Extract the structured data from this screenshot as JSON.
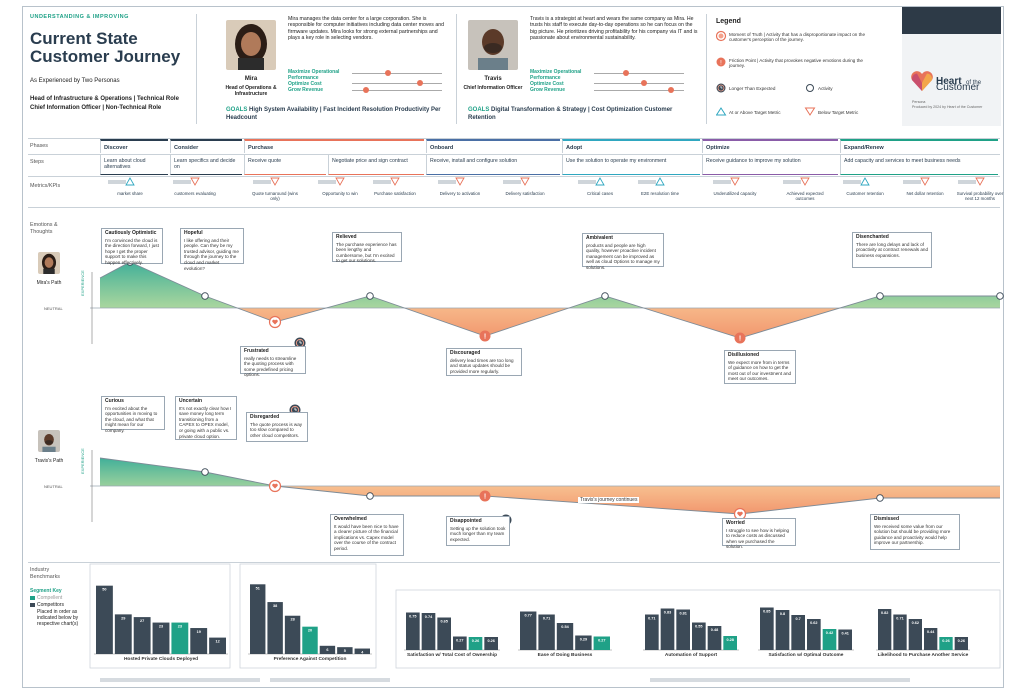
{
  "header": {
    "eyebrow": "UNDERSTANDING & IMPROVING",
    "title_line1": "Current State",
    "title_line2": "Customer Journey",
    "subtitle": "As Experienced by Two Personas",
    "role_line1": "Head of Infrastructure & Operations | Technical Role",
    "role_line2": "Chief Information Officer | Non-Technical Role"
  },
  "personas": [
    {
      "name": "Mira",
      "role": "Head of Operations & Infrastructure",
      "bio": "Mira manages the data center for a large corporation. She is responsible for computer initiatives including data center moves and firmware updates. Mira looks for strong external partnerships and plays a key role in selecting vendors.",
      "sliders": [
        {
          "label": "Maximize Operational Performance",
          "level": 0.4
        },
        {
          "label": "Optimize Cost",
          "level": 0.75
        },
        {
          "label": "Grow Revenue",
          "level": 0.15
        }
      ],
      "goals_label": "GOALS",
      "goals": "High System Availability | Fast Incident Resolution Productivity Per Headcount",
      "path_label": "Mira's Path"
    },
    {
      "name": "Travis",
      "role": "Chief Information Officer",
      "bio": "Travis is a strategist at heart and wears the same company as Mira. He trusts his staff to execute day-to-day operations so he can focus on the big picture. He prioritizes driving profitability for his company via IT and is passionate about environmental sustainability.",
      "sliders": [
        {
          "label": "Maximize Operational Performance",
          "level": 0.35
        },
        {
          "label": "Optimize Cost",
          "level": 0.55
        },
        {
          "label": "Grow Revenue",
          "level": 0.85
        }
      ],
      "goals_label": "GOALS",
      "goals": "Digital Transformation & Strategy | Cost Optimization Customer Retention",
      "path_label": "Travis's Path"
    }
  ],
  "legend": {
    "title": "Legend",
    "items": [
      {
        "icon": "moment-of-truth-icon",
        "label": "Moment of Truth | Activity that has a disproportionate impact on the customer's perception of the journey."
      },
      {
        "icon": "friction-point-icon",
        "label": "Friction Point | Activity that provokes negative emotions during the journey."
      },
      {
        "icon": "clock-icon",
        "label": "Longer Than Expected"
      },
      {
        "icon": "activity-icon",
        "label": "Activity"
      },
      {
        "icon": "triangle-up-icon",
        "label": "At or Above Target Metric"
      },
      {
        "icon": "triangle-down-icon",
        "label": "Below Target Metric"
      }
    ]
  },
  "brand": {
    "logo_line1": "Heart",
    "logo_of": "of the",
    "logo_line2": "Customer",
    "credit1": "Persona",
    "credit2": "Produced by 2024 by Heart of the Customer"
  },
  "rows": {
    "phases_label": "Phases",
    "steps_label": "Steps",
    "metrics_label": "Metrics/KPIs",
    "emotions_label": "Emotions & Thoughts",
    "neutral_label": "NEUTRAL",
    "experience_label": "EXPERIENCE",
    "benchmarks_label": "Industry Benchmarks"
  },
  "phases": [
    {
      "label": "Discover",
      "color": "#2a3d4f"
    },
    {
      "label": "Consider",
      "color": "#2a3d4f"
    },
    {
      "label": "Purchase",
      "color": "#e8735a"
    },
    {
      "label": "Onboard",
      "color": "#4a6fa5"
    },
    {
      "label": "Adopt",
      "color": "#2fa7c0"
    },
    {
      "label": "Optimize",
      "color": "#8a5ca8"
    },
    {
      "label": "Expand/Renew",
      "color": "#1fa187"
    }
  ],
  "steps": [
    "Learn about cloud alternatives",
    "Learn specifics and decide on",
    "Receive quote",
    "Negotiate price and sign contract",
    "Receive, install and configure solution",
    "Use the solution to operate my environment",
    "Receive guidance to improve my solution",
    "Add capacity and services to meet business needs"
  ],
  "metrics": [
    {
      "label": "market share",
      "dir": "up"
    },
    {
      "label": "customers evaluating",
      "dir": "down"
    },
    {
      "label": "Quote turnaround (wins only)",
      "dir": "down"
    },
    {
      "label": "Opportunity to win",
      "dir": "down"
    },
    {
      "label": "Purchase satisfaction",
      "dir": "down"
    },
    {
      "label": "Delivery to activation",
      "dir": "down"
    },
    {
      "label": "Delivery satisfaction",
      "dir": "down"
    },
    {
      "label": "Critical cases",
      "dir": "up"
    },
    {
      "label": "E2E resolution time",
      "dir": "up"
    },
    {
      "label": "Underutilized capacity",
      "dir": "down"
    },
    {
      "label": "Achieved expected outcomes",
      "dir": "down"
    },
    {
      "label": "Customer retention",
      "dir": "up"
    },
    {
      "label": "Net dollar retention",
      "dir": "down"
    },
    {
      "label": "Survival probability over next 12 months",
      "dir": "down"
    }
  ],
  "mira_cards": [
    {
      "title": "Cautiously Optimistic",
      "text": "I'm convinced the cloud is the direction forward, I just hope I get the proper support to make this happen effectively."
    },
    {
      "title": "Hopeful",
      "text": "I like offering and their people. Can they be my trusted advisor, guiding me through the journey to the cloud and market evolution?"
    },
    {
      "title": "Frustrated",
      "text": "really needs to streamline the quoting process with some predefined pricing options."
    },
    {
      "title": "Relieved",
      "text": "The purchase experience has been lengthy and cumbersome, but I'm excited to get our solutions."
    },
    {
      "title": "Discouraged",
      "text": "delivery lead times are too long and status updates should be provided more regularly."
    },
    {
      "title": "Ambivalent",
      "text": "products and people are high quality, however proactive incident management can be improved as well as cloud Options to manage my solutions."
    },
    {
      "title": "Disillusioned",
      "text": "We expect more from in terms of guidance on how to get the most out of our investment and meet our outcomes."
    },
    {
      "title": "Disenchanted",
      "text": "There are long delays and lack of proactivity at contract renewals and business expansions."
    }
  ],
  "travis_cards": [
    {
      "title": "Curious",
      "text": "I'm excited about the opportunities in moving to the cloud, and what that might mean for our company."
    },
    {
      "title": "Uncertain",
      "text": "It's not exactly clear how I save money long term transitioning from a CAPEX to OPEX model, or going with a public vs. private cloud option."
    },
    {
      "title": "Disregarded",
      "text": "The quote process is way too slow compared to other cloud competitors."
    },
    {
      "title": "Overwhelmed",
      "text": "It would have been nice to have a clearer picture of the financial implications vs. Capex model over the course of the contract period."
    },
    {
      "title": "Disappointed",
      "text": "Setting up the solution took much longer than my team expected."
    },
    {
      "title": "Worried",
      "text": "I struggle to see how is helping to reduce costs as discussed when we purchased the solution."
    },
    {
      "title": "Dismissed",
      "text": "We received some value from our solution but should be providing more guidance and proactivity would help improve our partnership."
    }
  ],
  "travis_continues": "Travis's journey continues",
  "benchmarks": {
    "segment_key_title": "Segment Key",
    "segment_key": [
      "Compellent",
      "Competitors",
      "Placed in order as indicated below by respective chart(s)"
    ],
    "colors": {
      "accent": "#1fa187",
      "bars": "#3c4a57"
    }
  },
  "chart_data": [
    {
      "type": "bar",
      "title": "Hosted Private Clouds Deployed",
      "values": [
        50,
        29,
        27,
        23,
        23,
        19,
        12
      ],
      "highlight_index": 4
    },
    {
      "type": "bar",
      "title": "Preference Against Competition",
      "values": [
        51,
        38,
        28,
        20,
        6,
        5,
        4
      ],
      "highlight_index": 3
    },
    {
      "type": "bar",
      "title": "Satisfaction w/ Total Cost of Ownership",
      "values": [
        0.75,
        0.74,
        0.65,
        0.27,
        0.26,
        0.26
      ],
      "highlight_index": 4
    },
    {
      "type": "bar",
      "title": "Ease of Doing Business",
      "values": [
        0.77,
        0.71,
        0.54,
        0.29,
        0.27
      ],
      "highlight_index": 4
    },
    {
      "type": "bar",
      "title": "Automation of Support",
      "values": [
        0.71,
        0.83,
        0.81,
        0.55,
        0.48,
        0.28
      ],
      "highlight_index": 5
    },
    {
      "type": "bar",
      "title": "Satisfaction w/ Optimal Outcome",
      "values": [
        0.85,
        0.8,
        0.7,
        0.62,
        0.42,
        0.41
      ],
      "highlight_index": 4
    },
    {
      "type": "bar",
      "title": "Likelihood to Purchase Another Service",
      "values": [
        0.82,
        0.71,
        0.62,
        0.44,
        0.26,
        0.26
      ],
      "highlight_index": 4
    }
  ]
}
